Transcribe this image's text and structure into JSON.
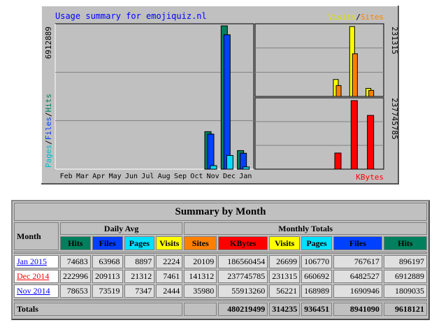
{
  "chart_data": [
    {
      "type": "bar",
      "title": "Usage summary for emojiquiz.nl",
      "categories": [
        "Feb",
        "Mar",
        "Apr",
        "May",
        "Jun",
        "Jul",
        "Aug",
        "Sep",
        "Oct",
        "Nov",
        "Dec",
        "Jan"
      ],
      "ylabel_parts": [
        "Pages",
        "/",
        "Files",
        "/",
        "Hits"
      ],
      "y_max_label": "6912889",
      "ylim": [
        0,
        6912889
      ],
      "series": [
        {
          "name": "Hits",
          "color": "#00805c",
          "values": [
            0,
            0,
            0,
            0,
            0,
            0,
            0,
            0,
            0,
            1809035,
            6912889,
            896197
          ]
        },
        {
          "name": "Files",
          "color": "#0040ff",
          "values": [
            0,
            0,
            0,
            0,
            0,
            0,
            0,
            0,
            0,
            1690946,
            6482527,
            767617
          ]
        },
        {
          "name": "Pages",
          "color": "#00e0ff",
          "values": [
            0,
            0,
            0,
            0,
            0,
            0,
            0,
            0,
            0,
            168989,
            660692,
            106770
          ]
        }
      ]
    },
    {
      "type": "bar",
      "legend_parts": [
        "Visits",
        "/",
        "Sites"
      ],
      "categories": [
        "Nov",
        "Dec",
        "Jan"
      ],
      "y_max_label": "231315",
      "ylim": [
        0,
        231315
      ],
      "series": [
        {
          "name": "Visits",
          "color": "#ffff00",
          "values": [
            56221,
            231315,
            26699
          ]
        },
        {
          "name": "Sites",
          "color": "#ff8000",
          "values": [
            35980,
            141312,
            20109
          ]
        }
      ]
    },
    {
      "type": "bar",
      "categories": [
        "Nov",
        "Dec",
        "Jan"
      ],
      "y_max_label": "237745785",
      "ylim": [
        0,
        237745785
      ],
      "label": "KBytes",
      "series": [
        {
          "name": "KBytes",
          "color": "#ff0000",
          "values": [
            55913260,
            237745785,
            186560454
          ]
        }
      ]
    }
  ],
  "colors": {
    "chart_bg": "#c0c0c0",
    "title": "#0000ff",
    "hits": "#00805c",
    "files": "#0040ff",
    "pages": "#00e0ff",
    "visits": "#ffff00",
    "sites": "#ff8000",
    "kbytes": "#ff0000",
    "link": "#0000ff",
    "link_visited": "#ff0000"
  },
  "table": {
    "title": "Summary by Month",
    "month_header": "Month",
    "daily_avg_header": "Daily Avg",
    "monthly_totals_header": "Monthly Totals",
    "columns": {
      "hits": "Hits",
      "files": "Files",
      "pages": "Pages",
      "visits": "Visits",
      "sites": "Sites",
      "kbytes": "KBytes"
    },
    "rows": [
      {
        "month": "Jan 2015",
        "avg_hits": "74683",
        "avg_files": "63968",
        "avg_pages": "8897",
        "avg_visits": "2224",
        "sites": "20109",
        "kbytes": "186560454",
        "visits": "26699",
        "pages": "106770",
        "files": "767617",
        "hits": "896197"
      },
      {
        "month": "Dec 2014",
        "avg_hits": "222996",
        "avg_files": "209113",
        "avg_pages": "21312",
        "avg_visits": "7461",
        "sites": "141312",
        "kbytes": "237745785",
        "visits": "231315",
        "pages": "660692",
        "files": "6482527",
        "hits": "6912889"
      },
      {
        "month": "Nov 2014",
        "avg_hits": "78653",
        "avg_files": "73519",
        "avg_pages": "7347",
        "avg_visits": "2444",
        "sites": "35980",
        "kbytes": "55913260",
        "visits": "56221",
        "pages": "168989",
        "files": "1690946",
        "hits": "1809035"
      }
    ],
    "totals": {
      "label": "Totals",
      "kbytes": "480219499",
      "visits": "314235",
      "pages": "936451",
      "files": "8941090",
      "hits": "9618121"
    }
  }
}
